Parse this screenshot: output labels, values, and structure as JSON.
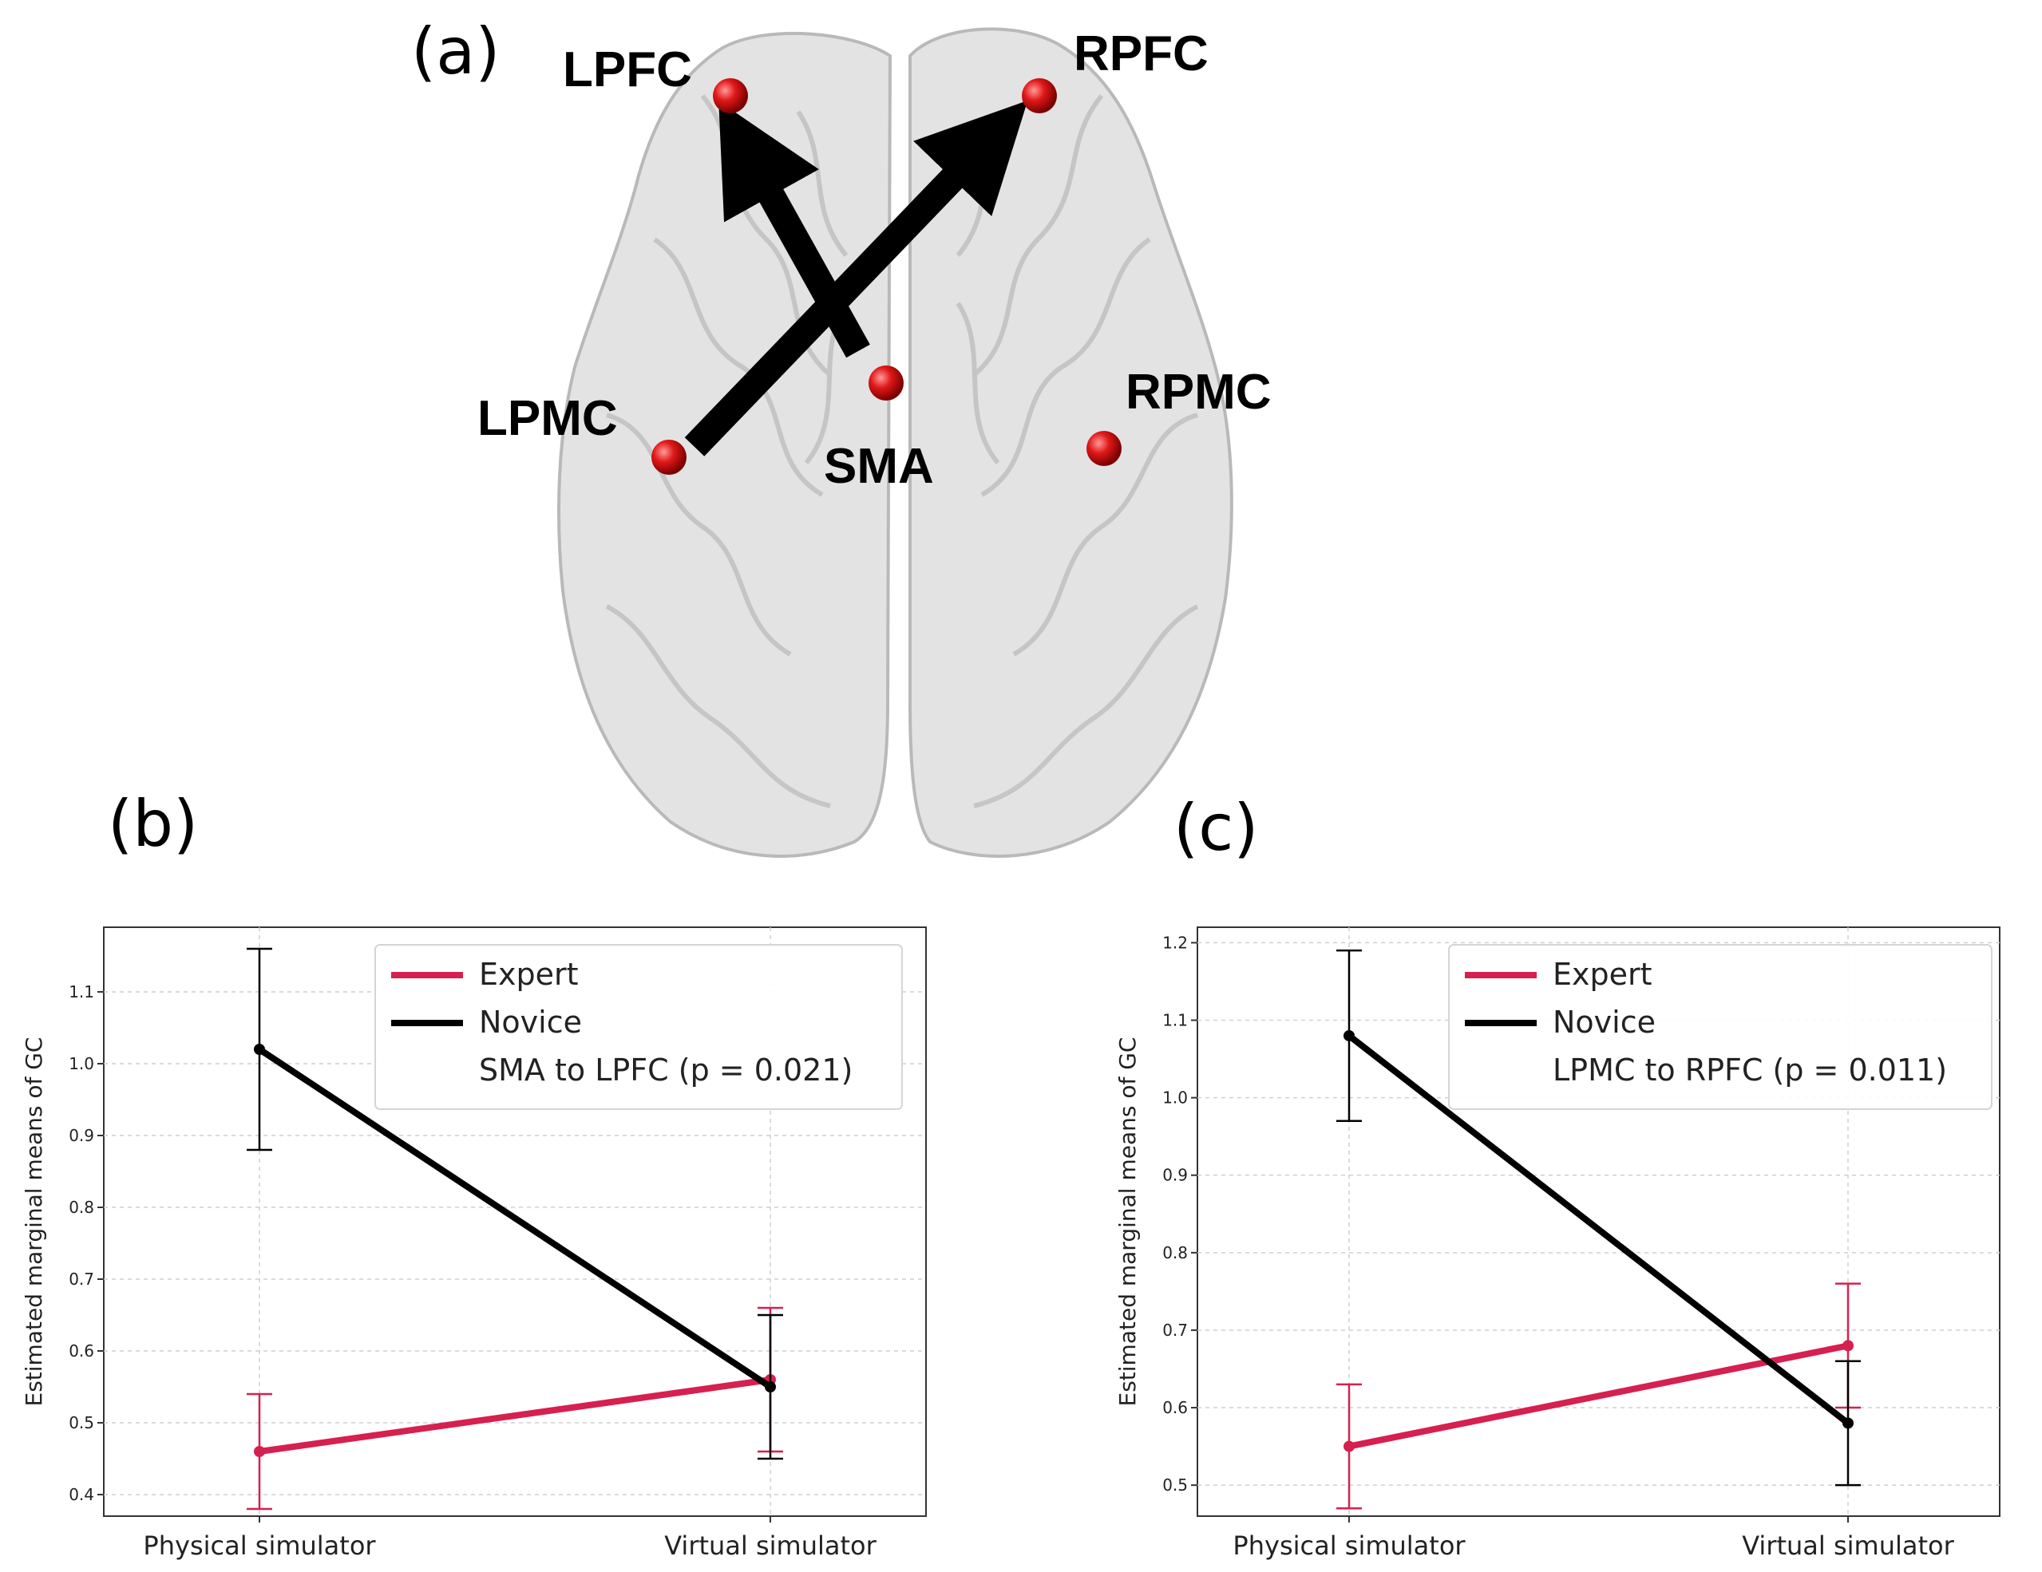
{
  "colors": {
    "expert": "#d6204f",
    "novice": "#000000",
    "node": "#e01818",
    "grid": "#cfcfcf"
  },
  "panel_a": {
    "label": "(a)",
    "regions": {
      "lpfc": "LPFC",
      "rpfc": "RPFC",
      "lpmc": "LPMC",
      "sma": "SMA",
      "rpmc": "RPMC"
    },
    "connections": [
      "SMA to LPFC",
      "LPMC to RPFC"
    ]
  },
  "panel_b_label": "(b)",
  "panel_c_label": "(c)",
  "chart_data": [
    {
      "type": "line",
      "panel": "(b)",
      "categories": [
        "Physical simulator",
        "Virtual simulator"
      ],
      "ylabel": "Estimated marginal means of GC",
      "ylim": [
        0.37,
        1.19
      ],
      "yticks": [
        0.4,
        0.5,
        0.6,
        0.7,
        0.8,
        0.9,
        1.0,
        1.1
      ],
      "ytick_labels": [
        "0.4",
        "0.5",
        "0.6",
        "0.7",
        "0.8",
        "0.9",
        "1.0",
        "1.1"
      ],
      "legend": {
        "expert": "Expert",
        "novice": "Novice",
        "note": "SMA to LPFC (p = 0.021)"
      },
      "series": [
        {
          "name": "Expert",
          "values": [
            0.46,
            0.56
          ],
          "err_low": [
            0.38,
            0.46
          ],
          "err_high": [
            0.54,
            0.66
          ]
        },
        {
          "name": "Novice",
          "values": [
            1.02,
            0.55
          ],
          "err_low": [
            0.88,
            0.45
          ],
          "err_high": [
            1.16,
            0.65
          ]
        }
      ]
    },
    {
      "type": "line",
      "panel": "(c)",
      "categories": [
        "Physical simulator",
        "Virtual simulator"
      ],
      "ylabel": "Estimated marginal means of GC",
      "ylim": [
        0.46,
        1.22
      ],
      "yticks": [
        0.5,
        0.6,
        0.7,
        0.8,
        0.9,
        1.0,
        1.1,
        1.2
      ],
      "ytick_labels": [
        "0.5",
        "0.6",
        "0.7",
        "0.8",
        "0.9",
        "1.0",
        "1.1",
        "1.2"
      ],
      "legend": {
        "expert": "Expert",
        "novice": "Novice",
        "note": "LPMC to RPFC (p = 0.011)"
      },
      "series": [
        {
          "name": "Expert",
          "values": [
            0.55,
            0.68
          ],
          "err_low": [
            0.47,
            0.6
          ],
          "err_high": [
            0.63,
            0.76
          ]
        },
        {
          "name": "Novice",
          "values": [
            1.08,
            0.58
          ],
          "err_low": [
            0.97,
            0.5
          ],
          "err_high": [
            1.19,
            0.66
          ]
        }
      ]
    }
  ]
}
